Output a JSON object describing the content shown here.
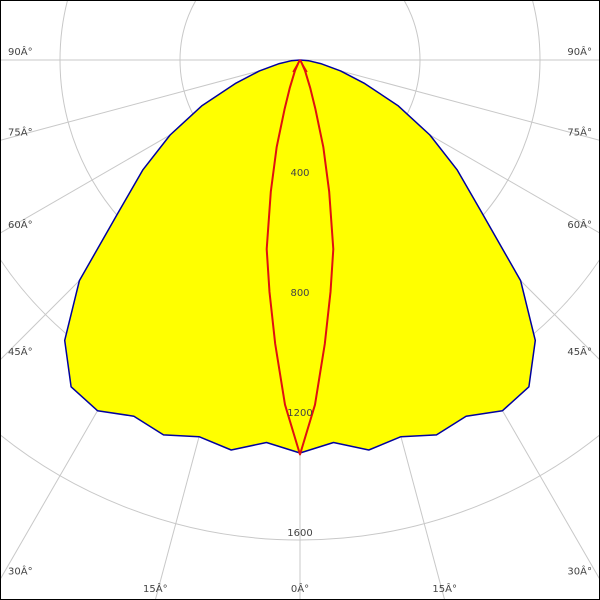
{
  "chart_data": {
    "type": "polar",
    "rlim": [
      0,
      2000
    ],
    "rticks": [
      400,
      800,
      1200,
      1600
    ],
    "angle_ticks": [
      {
        "value": 0,
        "label": "0Â°"
      },
      {
        "value": 15,
        "label": "15Â°"
      },
      {
        "value": 30,
        "label": "30Â°"
      },
      {
        "value": 45,
        "label": "45Â°"
      },
      {
        "value": 60,
        "label": "60Â°"
      },
      {
        "value": 75,
        "label": "75Â°"
      },
      {
        "value": 90,
        "label": "90Â°"
      }
    ],
    "series": [
      {
        "color": "#0000a0",
        "fill": "#ffff00",
        "angles": [
          -90,
          -85,
          -80,
          -75,
          -70,
          -65,
          -60,
          -55,
          -50,
          -45,
          -40,
          -35,
          -30,
          -25,
          -20,
          -15,
          -10,
          -5,
          0,
          5,
          10,
          15,
          20,
          25,
          30,
          35,
          40,
          45,
          50,
          55,
          60,
          65,
          70,
          75,
          80,
          85,
          90
        ],
        "values": [
          0,
          30,
          70,
          140,
          230,
          360,
          500,
          640,
          790,
          1040,
          1220,
          1330,
          1350,
          1310,
          1330,
          1300,
          1320,
          1280,
          1310,
          1280,
          1320,
          1300,
          1330,
          1310,
          1350,
          1330,
          1220,
          1040,
          790,
          640,
          500,
          360,
          230,
          140,
          70,
          30,
          0
        ]
      },
      {
        "color": "#e01010",
        "angles": [
          -90,
          -40,
          -30,
          -25,
          -20,
          -17.5,
          -15,
          -12.5,
          -10,
          -7.5,
          -5,
          -2.5,
          0,
          2.5,
          5,
          7.5,
          10,
          12.5,
          15,
          17.5,
          20,
          25,
          30,
          40,
          90
        ],
        "values": [
          0,
          2,
          10,
          40,
          100,
          170,
          300,
          450,
          640,
          780,
          950,
          1150,
          1315,
          1150,
          950,
          780,
          640,
          450,
          300,
          170,
          100,
          40,
          10,
          2,
          0
        ]
      }
    ]
  }
}
